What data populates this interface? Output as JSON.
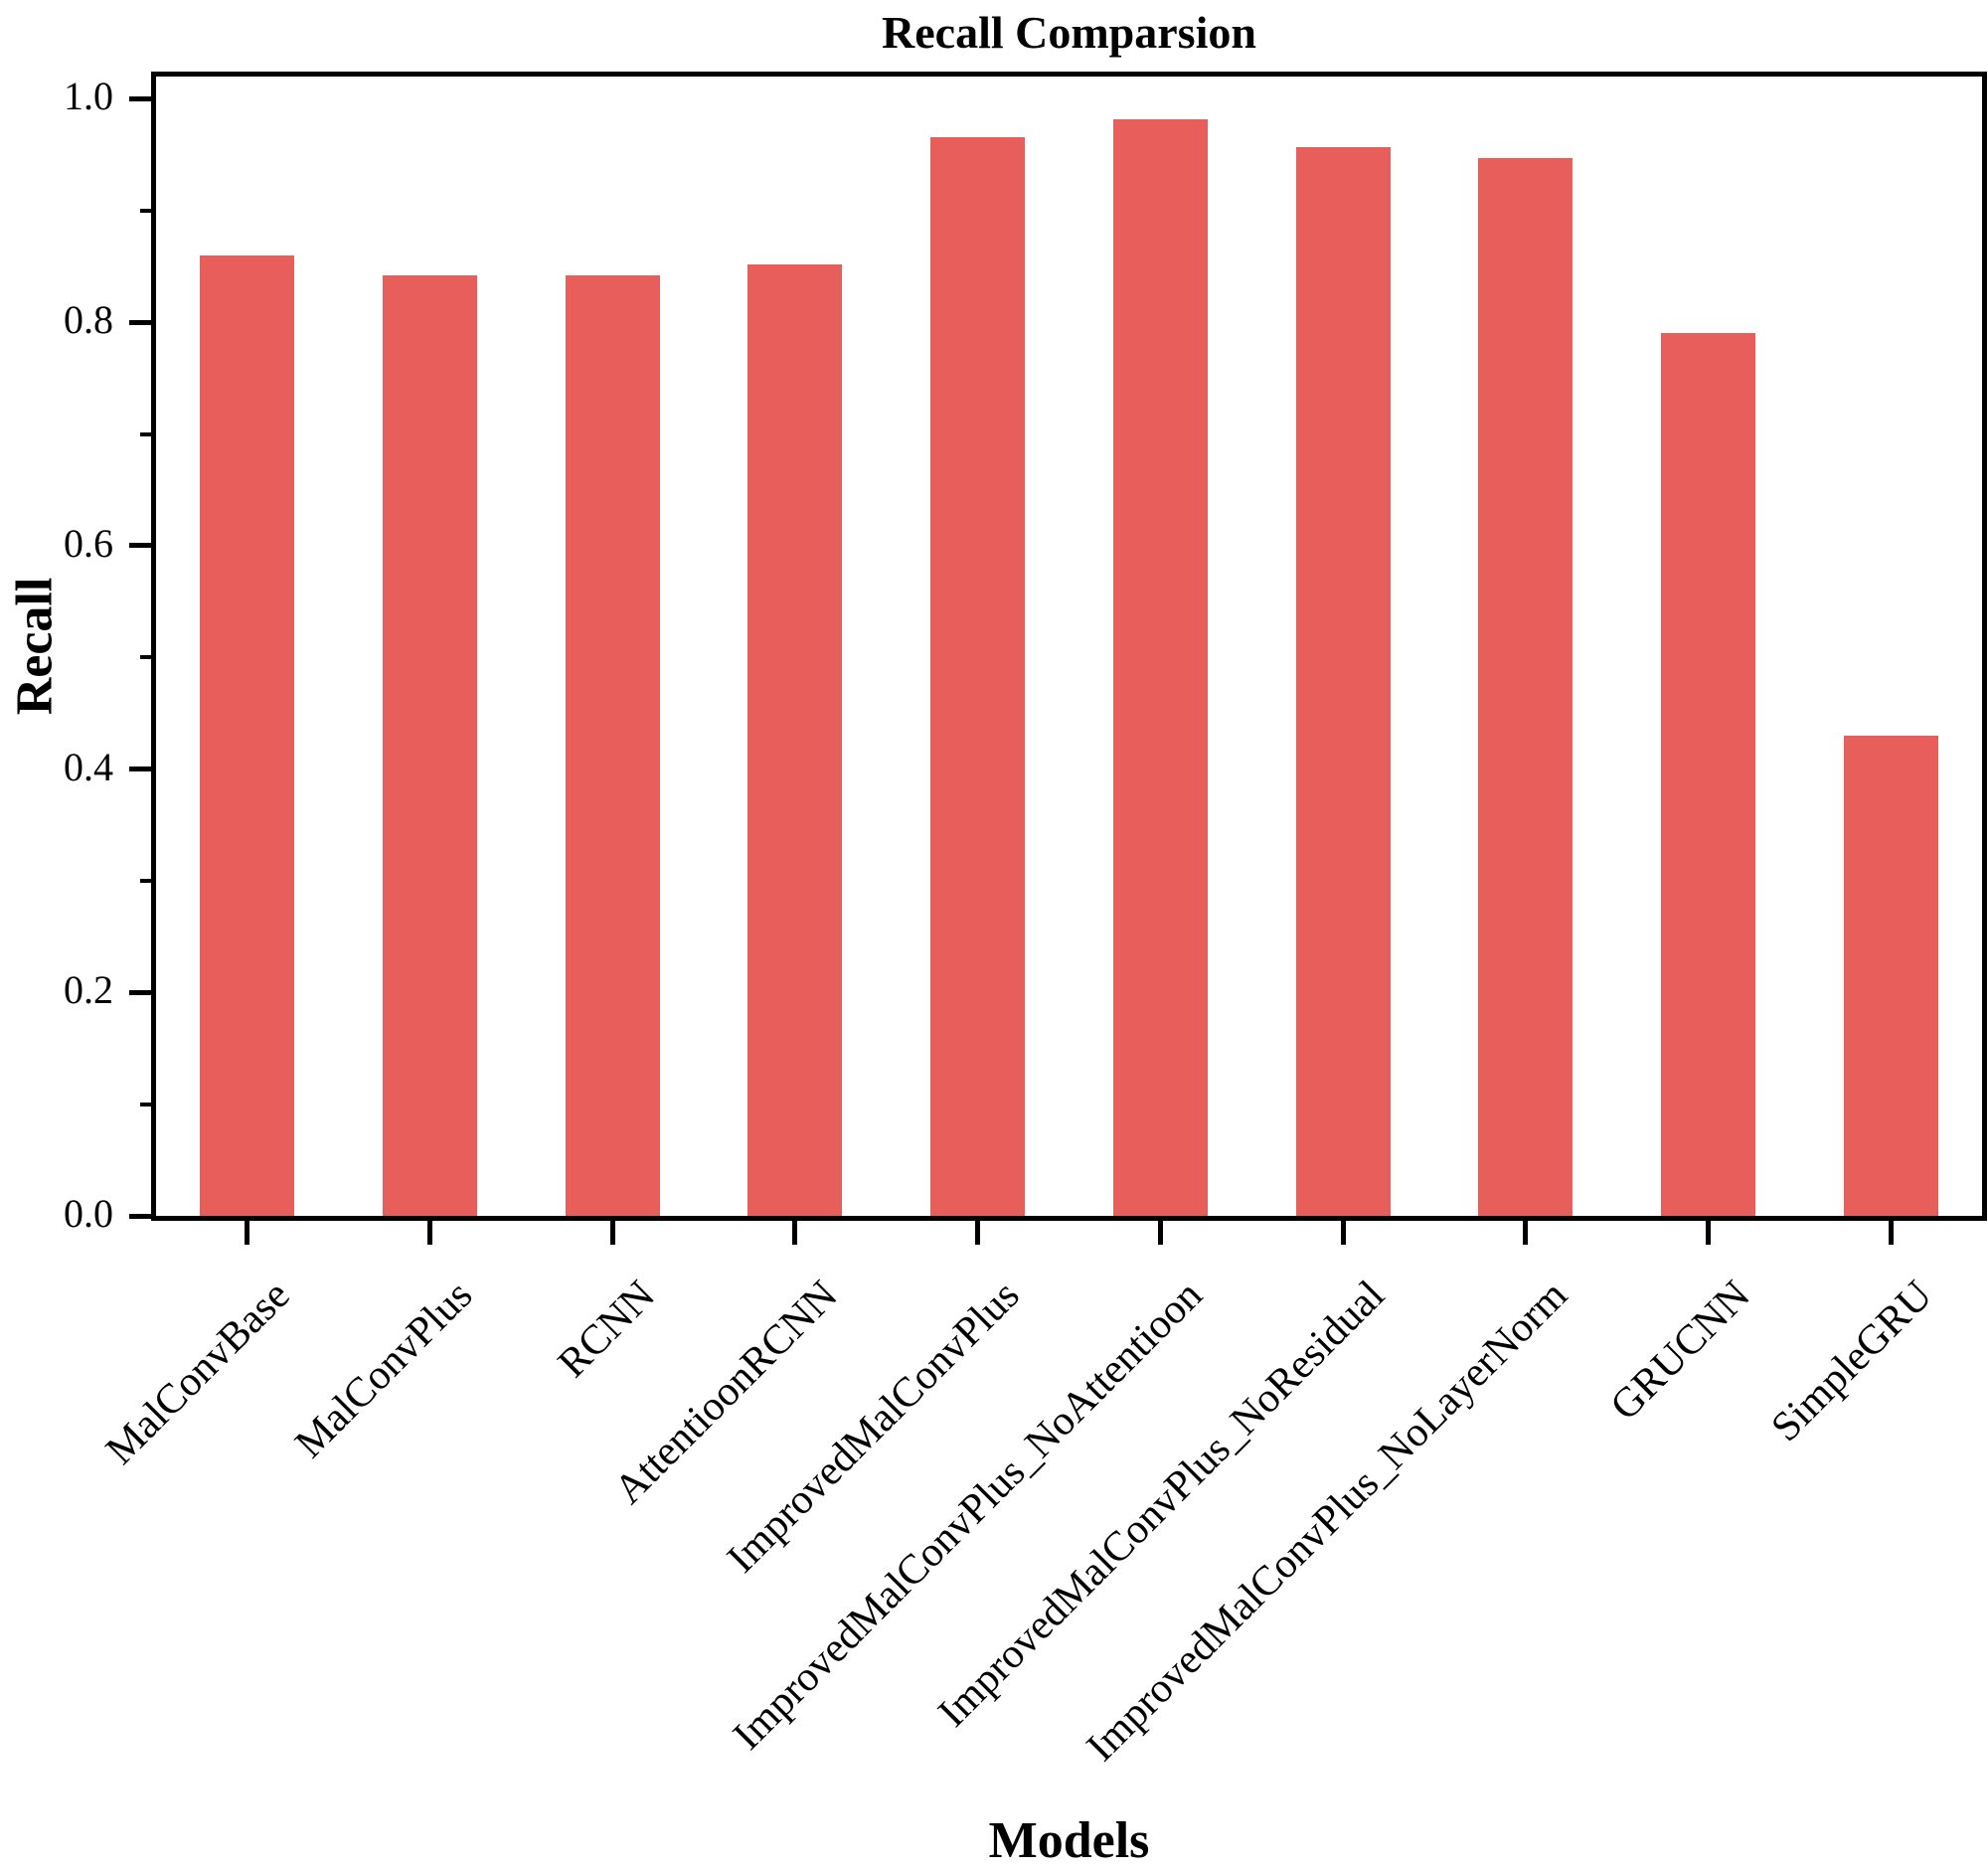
{
  "chart_data": {
    "type": "bar",
    "title": "Recall Comparsion",
    "xlabel": "Models",
    "ylabel": "Recall",
    "categories": [
      "MalConvBase",
      "MalConvPlus",
      "RCNN",
      "AttentioonRCNN",
      "ImprovedMalConvPlus",
      "ImprovedMalConvPlus_NoAttentioon",
      "ImprovedMalConvPlus_NoResidual",
      "ImprovedMalConvPlus_NoLayerNorm",
      "GRUCNN",
      "SimpleGRU"
    ],
    "values": [
      0.86,
      0.842,
      0.842,
      0.852,
      0.966,
      0.982,
      0.957,
      0.947,
      0.79,
      0.43
    ],
    "ylim": [
      0,
      1.02
    ],
    "yticks": [
      {
        "value": 0.0,
        "label": "0.0"
      },
      {
        "value": 0.2,
        "label": "0.2"
      },
      {
        "value": 0.4,
        "label": "0.4"
      },
      {
        "value": 0.6,
        "label": "0.6"
      },
      {
        "value": 0.8,
        "label": "0.8"
      },
      {
        "value": 1.0,
        "label": "1.0"
      }
    ],
    "yticks_minor": [
      0.1,
      0.3,
      0.5,
      0.7,
      0.9
    ],
    "bar_color": "#E85E5A",
    "axis_color": "#000000",
    "grid": false
  }
}
